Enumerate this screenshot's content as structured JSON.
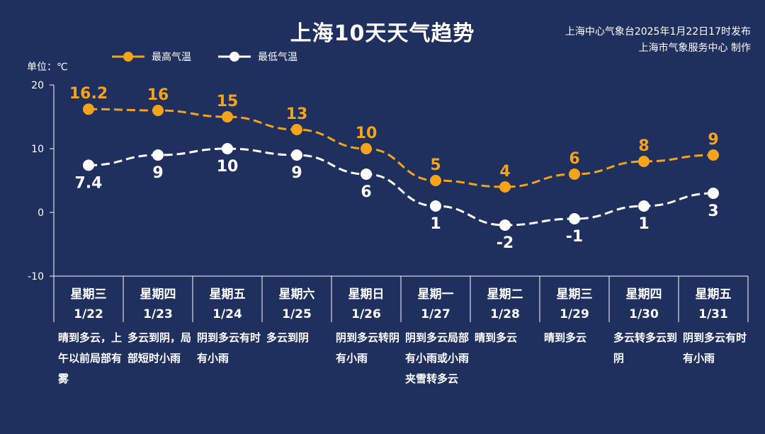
{
  "title": "上海10天天气趋势",
  "source": {
    "line1": "上海中心气象台2025年1月22日17时发布",
    "line2": "上海市气象服务中心 制作"
  },
  "unit_label": "单位：℃",
  "colors": {
    "background": "#1f2f5e",
    "high": "#f5a31a",
    "low": "#ffffff",
    "grid": "#ffffff"
  },
  "chart_data": {
    "type": "line",
    "ylabel": "单位：℃",
    "ylim": [
      -10,
      20
    ],
    "yticks": [
      -10,
      0,
      10,
      20
    ],
    "grid": false,
    "legend_position": "top-left",
    "categories": [
      {
        "weekday": "星期三",
        "date": "1/22",
        "weather": "晴到多云，上午以前局部有雾"
      },
      {
        "weekday": "星期四",
        "date": "1/23",
        "weather": "多云到阴，局部短时小雨"
      },
      {
        "weekday": "星期五",
        "date": "1/24",
        "weather": "阴到多云有时有小雨"
      },
      {
        "weekday": "星期六",
        "date": "1/25",
        "weather": "多云到阴"
      },
      {
        "weekday": "星期日",
        "date": "1/26",
        "weather": "阴到多云转阴有小雨"
      },
      {
        "weekday": "星期一",
        "date": "1/27",
        "weather": "阴到多云局部有小雨或小雨夹雪转多云"
      },
      {
        "weekday": "星期二",
        "date": "1/28",
        "weather": "晴到多云"
      },
      {
        "weekday": "星期三",
        "date": "1/29",
        "weather": "晴到多云"
      },
      {
        "weekday": "星期四",
        "date": "1/30",
        "weather": "多云转多云到阴"
      },
      {
        "weekday": "星期五",
        "date": "1/31",
        "weather": "阴到多云有时有小雨"
      }
    ],
    "series": [
      {
        "name": "最高气温",
        "color": "#f5a31a",
        "values": [
          16.2,
          16,
          15,
          13,
          10,
          5,
          4,
          6,
          8,
          9
        ],
        "labels": [
          "16.2",
          "16",
          "15",
          "13",
          "10",
          "5",
          "4",
          "6",
          "8",
          "9"
        ]
      },
      {
        "name": "最低气温",
        "color": "#ffffff",
        "values": [
          7.4,
          9,
          10,
          9,
          6,
          1,
          -2,
          -1,
          1,
          3
        ],
        "labels": [
          "7.4",
          "9",
          "10",
          "9",
          "6",
          "1",
          "-2",
          "-1",
          "1",
          "3"
        ]
      }
    ]
  }
}
